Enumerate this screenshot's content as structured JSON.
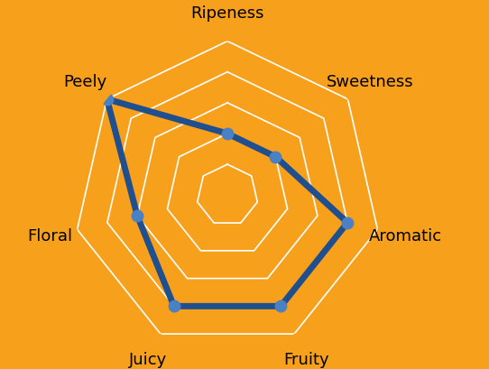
{
  "chart_data": {
    "type": "radar",
    "categories": [
      "Ripeness",
      "Sweetness",
      "Aromatic",
      "Fruity",
      "Juicy",
      "Floral",
      "Peely"
    ],
    "values": [
      2,
      2,
      4,
      4,
      4,
      3,
      5
    ],
    "color": "#1f4f8f",
    "marker": "circle",
    "ylim": [
      0,
      5
    ],
    "yticks": [
      1,
      2,
      3,
      4,
      5
    ],
    "grid": true,
    "tick_labels": "x"
  }
}
